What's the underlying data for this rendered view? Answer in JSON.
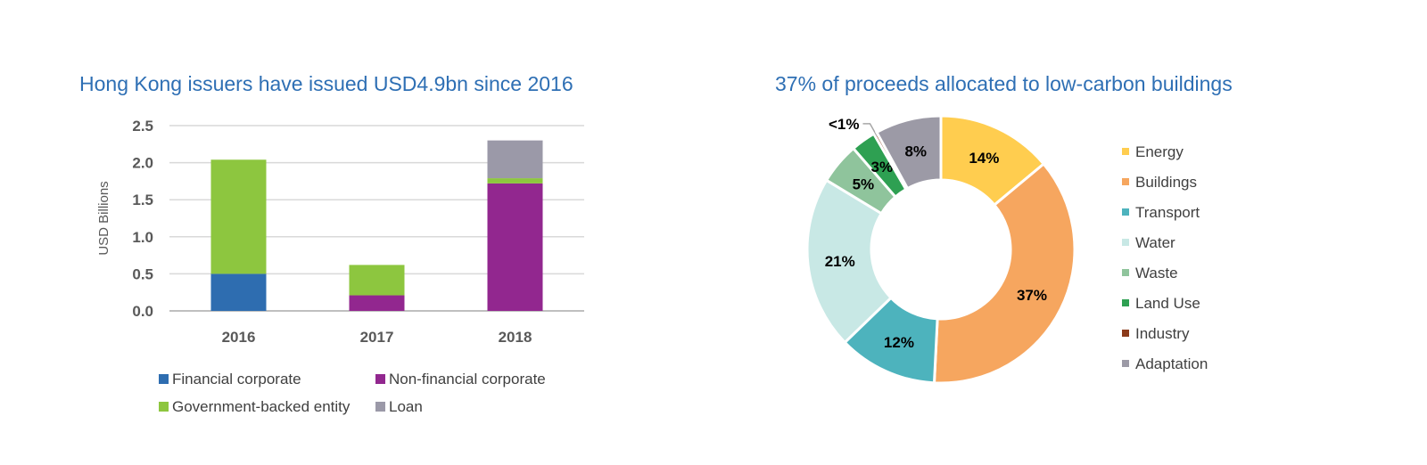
{
  "chart_data": [
    {
      "type": "bar",
      "stacked": true,
      "title": "Hong Kong issuers have issued USD4.9bn since 2016",
      "ylabel": "USD Billions",
      "xlabel": "",
      "categories": [
        "2016",
        "2017",
        "2018"
      ],
      "ylim": [
        0,
        2.5
      ],
      "yticks": [
        "0.0",
        "0.5",
        "1.0",
        "1.5",
        "2.0",
        "2.5"
      ],
      "grid": true,
      "legend_position": "bottom",
      "series": [
        {
          "name": "Financial corporate",
          "color": "#2e6db0",
          "values": [
            0.5,
            0,
            0
          ]
        },
        {
          "name": "Non-financial corporate",
          "color": "#92278f",
          "values": [
            0,
            0.21,
            1.72
          ]
        },
        {
          "name": "Government-backed entity",
          "color": "#8dc63f",
          "values": [
            1.54,
            0.41,
            0.07
          ]
        },
        {
          "name": "Loan",
          "color": "#9b99a8",
          "values": [
            0,
            0,
            0.51
          ]
        }
      ]
    },
    {
      "type": "pie",
      "donut": true,
      "title": "37% of proceeds allocated to low-carbon buildings",
      "legend_position": "right",
      "slices": [
        {
          "name": "Energy",
          "value": 14,
          "label": "14%",
          "color": "#ffcd4f"
        },
        {
          "name": "Buildings",
          "value": 37,
          "label": "37%",
          "color": "#f6a65f"
        },
        {
          "name": "Transport",
          "value": 12,
          "label": "12%",
          "color": "#4db3bd"
        },
        {
          "name": "Water",
          "value": 21,
          "label": "21%",
          "color": "#c8e8e5"
        },
        {
          "name": "Waste",
          "value": 5,
          "label": "5%",
          "color": "#8fc49c"
        },
        {
          "name": "Land Use",
          "value": 3,
          "label": "3%",
          "color": "#2ea052"
        },
        {
          "name": "Industry",
          "value": 0.4,
          "label": "<1%",
          "color": "#8b3a1a"
        },
        {
          "name": "Adaptation",
          "value": 8,
          "label": "8%",
          "color": "#9c9aa6"
        }
      ]
    }
  ]
}
